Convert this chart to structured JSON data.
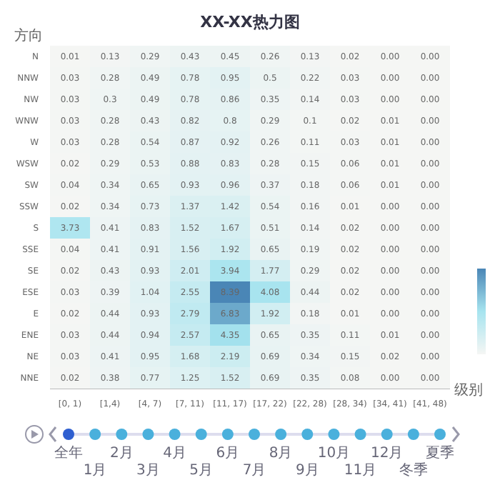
{
  "chart_data": {
    "type": "heatmap",
    "title": "XX-XX热力图",
    "xlabel": "级别",
    "ylabel": "方向",
    "categories": [
      "[0, 1)",
      "[1,4)",
      "[4, 7)",
      "[7, 11)",
      "[11, 17)",
      "[17, 22)",
      "[22, 28)",
      "[28, 34)",
      "[34, 41)",
      "[41, 48)"
    ],
    "y_categories": [
      "N",
      "NNW",
      "NW",
      "WNW",
      "W",
      "WSW",
      "SW",
      "SSW",
      "S",
      "SSE",
      "SE",
      "ESE",
      "E",
      "ENE",
      "NE",
      "NNE"
    ],
    "cells": [
      [
        0.01,
        0.13,
        0.29,
        0.43,
        0.45,
        0.26,
        0.13,
        0.02,
        0,
        0
      ],
      [
        0.03,
        0.28,
        0.49,
        0.78,
        0.95,
        0.5,
        0.22,
        0.03,
        0,
        0
      ],
      [
        0.03,
        0.3,
        0.49,
        0.78,
        0.86,
        0.35,
        0.14,
        0.03,
        0,
        0
      ],
      [
        0.03,
        0.28,
        0.43,
        0.82,
        0.8,
        0.29,
        0.1,
        0.02,
        0.01,
        0
      ],
      [
        0.03,
        0.28,
        0.54,
        0.87,
        0.92,
        0.26,
        0.11,
        0.03,
        0.01,
        0
      ],
      [
        0.02,
        0.29,
        0.53,
        0.88,
        0.83,
        0.28,
        0.15,
        0.06,
        0.01,
        0
      ],
      [
        0.04,
        0.34,
        0.65,
        0.93,
        0.96,
        0.37,
        0.18,
        0.06,
        0.01,
        0
      ],
      [
        0.02,
        0.34,
        0.73,
        1.37,
        1.42,
        0.54,
        0.16,
        0.01,
        0,
        0
      ],
      [
        3.73,
        0.41,
        0.83,
        1.52,
        1.67,
        0.51,
        0.14,
        0.02,
        0,
        0
      ],
      [
        0.04,
        0.41,
        0.91,
        1.56,
        1.92,
        0.65,
        0.19,
        0.02,
        0,
        0
      ],
      [
        0.02,
        0.43,
        0.93,
        2.01,
        3.94,
        1.77,
        0.29,
        0.02,
        0,
        0
      ],
      [
        0.03,
        0.39,
        1.04,
        2.55,
        8.39,
        4.08,
        0.44,
        0.02,
        0,
        0
      ],
      [
        0.02,
        0.44,
        0.93,
        2.79,
        6.83,
        1.92,
        0.18,
        0.01,
        0,
        0
      ],
      [
        0.03,
        0.44,
        0.94,
        2.57,
        4.35,
        0.65,
        0.35,
        0.11,
        0.01,
        0
      ],
      [
        0.03,
        0.41,
        0.95,
        1.68,
        2.19,
        0.69,
        0.34,
        0.15,
        0.02,
        0
      ],
      [
        0.02,
        0.38,
        0.77,
        1.25,
        1.52,
        0.69,
        0.35,
        0.08,
        0,
        0
      ]
    ],
    "cell_labels": [
      [
        "0.01",
        "0.13",
        "0.29",
        "0.43",
        "0.45",
        "0.26",
        "0.13",
        "0.02",
        "0.00",
        "0.00"
      ],
      [
        "0.03",
        "0.28",
        "0.49",
        "0.78",
        "0.95",
        "0.5",
        "0.22",
        "0.03",
        "0.00",
        "0.00"
      ],
      [
        "0.03",
        "0.3",
        "0.49",
        "0.78",
        "0.86",
        "0.35",
        "0.14",
        "0.03",
        "0.00",
        "0.00"
      ],
      [
        "0.03",
        "0.28",
        "0.43",
        "0.82",
        "0.8",
        "0.29",
        "0.1",
        "0.02",
        "0.01",
        "0.00"
      ],
      [
        "0.03",
        "0.28",
        "0.54",
        "0.87",
        "0.92",
        "0.26",
        "0.11",
        "0.03",
        "0.01",
        "0.00"
      ],
      [
        "0.02",
        "0.29",
        "0.53",
        "0.88",
        "0.83",
        "0.28",
        "0.15",
        "0.06",
        "0.01",
        "0.00"
      ],
      [
        "0.04",
        "0.34",
        "0.65",
        "0.93",
        "0.96",
        "0.37",
        "0.18",
        "0.06",
        "0.01",
        "0.00"
      ],
      [
        "0.02",
        "0.34",
        "0.73",
        "1.37",
        "1.42",
        "0.54",
        "0.16",
        "0.01",
        "0.00",
        "0.00"
      ],
      [
        "3.73",
        "0.41",
        "0.83",
        "1.52",
        "1.67",
        "0.51",
        "0.14",
        "0.02",
        "0.00",
        "0.00"
      ],
      [
        "0.04",
        "0.41",
        "0.91",
        "1.56",
        "1.92",
        "0.65",
        "0.19",
        "0.02",
        "0.00",
        "0.00"
      ],
      [
        "0.02",
        "0.43",
        "0.93",
        "2.01",
        "3.94",
        "1.77",
        "0.29",
        "0.02",
        "0.00",
        "0.00"
      ],
      [
        "0.03",
        "0.39",
        "1.04",
        "2.55",
        "8.39",
        "4.08",
        "0.44",
        "0.02",
        "0.00",
        "0.00"
      ],
      [
        "0.02",
        "0.44",
        "0.93",
        "2.79",
        "6.83",
        "1.92",
        "0.18",
        "0.01",
        "0.00",
        "0.00"
      ],
      [
        "0.03",
        "0.44",
        "0.94",
        "2.57",
        "4.35",
        "0.65",
        "0.35",
        "0.11",
        "0.01",
        "0.00"
      ],
      [
        "0.03",
        "0.41",
        "0.95",
        "1.68",
        "2.19",
        "0.69",
        "0.34",
        "0.15",
        "0.02",
        "0.00"
      ],
      [
        "0.02",
        "0.38",
        "0.77",
        "1.25",
        "1.52",
        "0.69",
        "0.35",
        "0.08",
        "0.00",
        "0.00"
      ]
    ],
    "colors": [
      "#f5f6f4",
      "#a6e4ef",
      "#4a86b6"
    ],
    "annotations": [
      "全年",
      "1月",
      "2月",
      "3月",
      "4月",
      "5月",
      "6月",
      "7月",
      "8月",
      "9月",
      "10月",
      "11月",
      "12月",
      "冬季",
      "夏季"
    ]
  }
}
